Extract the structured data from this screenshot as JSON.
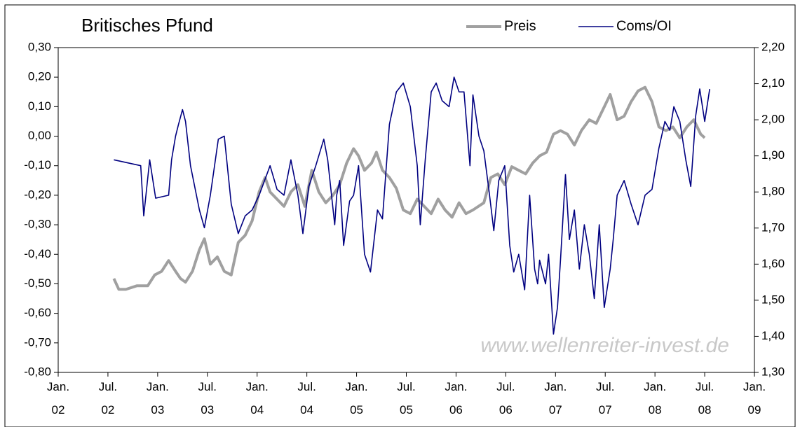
{
  "chart_data": {
    "type": "line",
    "title": "Britisches Pfund",
    "watermark": "www.wellenreiter-invest.de",
    "legend": "top",
    "xlim": [
      2002,
      2009
    ],
    "xticks": [
      {
        "value": 2002,
        "label": "Jan.\n02"
      },
      {
        "value": 2002.5,
        "label": "Jul.\n02"
      },
      {
        "value": 2003,
        "label": "Jan.\n03"
      },
      {
        "value": 2003.5,
        "label": "Jul.\n03"
      },
      {
        "value": 2004,
        "label": "Jan.\n04"
      },
      {
        "value": 2004.5,
        "label": "Jul.\n04"
      },
      {
        "value": 2005,
        "label": "Jan.\n05"
      },
      {
        "value": 2005.5,
        "label": "Jul.\n05"
      },
      {
        "value": 2006,
        "label": "Jan.\n06"
      },
      {
        "value": 2006.5,
        "label": "Jul.\n06"
      },
      {
        "value": 2007,
        "label": "Jan.\n07"
      },
      {
        "value": 2007.5,
        "label": "Jul.\n07"
      },
      {
        "value": 2008,
        "label": "Jan.\n08"
      },
      {
        "value": 2008.5,
        "label": "Jul.\n08"
      },
      {
        "value": 2009,
        "label": "Jan.\n09"
      }
    ],
    "ylim": [
      -0.8,
      0.3
    ],
    "yticks": [
      {
        "value": -0.8,
        "label": "-0,80"
      },
      {
        "value": -0.7,
        "label": "-0,70"
      },
      {
        "value": -0.6,
        "label": "-0,60"
      },
      {
        "value": -0.5,
        "label": "-0,50"
      },
      {
        "value": -0.4,
        "label": "-0,40"
      },
      {
        "value": -0.3,
        "label": "-0,30"
      },
      {
        "value": -0.2,
        "label": "-0,20"
      },
      {
        "value": -0.1,
        "label": "-0,10"
      },
      {
        "value": 0,
        "label": "0,00"
      },
      {
        "value": 0.1,
        "label": "0,10"
      },
      {
        "value": 0.2,
        "label": "0,20"
      },
      {
        "value": 0.3,
        "label": "0,30"
      }
    ],
    "y2lim": [
      1.3,
      2.2
    ],
    "y2ticks": [
      {
        "value": 1.3,
        "label": "1,30"
      },
      {
        "value": 1.4,
        "label": "1,40"
      },
      {
        "value": 1.5,
        "label": "1,50"
      },
      {
        "value": 1.6,
        "label": "1,60"
      },
      {
        "value": 1.7,
        "label": "1,70"
      },
      {
        "value": 1.8,
        "label": "1,80"
      },
      {
        "value": 1.9,
        "label": "1,90"
      },
      {
        "value": 2.0,
        "label": "2,00"
      },
      {
        "value": 2.1,
        "label": "2,10"
      },
      {
        "value": 2.2,
        "label": "2,20"
      }
    ],
    "series": [
      {
        "name": "Preis",
        "color": "#a0a0a0",
        "axis": "y2",
        "x": [
          2002.56,
          2002.61,
          2002.68,
          2002.79,
          2002.9,
          2002.97,
          2003.04,
          2003.11,
          2003.18,
          2003.23,
          2003.28,
          2003.35,
          2003.42,
          2003.47,
          2003.53,
          2003.6,
          2003.67,
          2003.74,
          2003.81,
          2003.88,
          2003.95,
          2004.02,
          2004.08,
          2004.13,
          2004.2,
          2004.27,
          2004.34,
          2004.41,
          2004.48,
          2004.55,
          2004.62,
          2004.69,
          2004.76,
          2004.83,
          2004.9,
          2004.97,
          2005.02,
          2005.08,
          2005.15,
          2005.2,
          2005.26,
          2005.33,
          2005.4,
          2005.47,
          2005.54,
          2005.61,
          2005.68,
          2005.75,
          2005.82,
          2005.89,
          2005.96,
          2006.03,
          2006.1,
          2006.17,
          2006.28,
          2006.35,
          2006.42,
          2006.49,
          2006.56,
          2006.63,
          2006.7,
          2006.77,
          2006.84,
          2006.91,
          2006.98,
          2007.05,
          2007.12,
          2007.19,
          2007.26,
          2007.34,
          2007.41,
          2007.48,
          2007.55,
          2007.62,
          2007.69,
          2007.76,
          2007.83,
          2007.9,
          2007.97,
          2008.04,
          2008.11,
          2008.18,
          2008.25,
          2008.32,
          2008.39,
          2008.46,
          2008.5
        ],
        "values": [
          1.56,
          1.53,
          1.53,
          1.54,
          1.54,
          1.57,
          1.58,
          1.61,
          1.58,
          1.56,
          1.55,
          1.58,
          1.64,
          1.67,
          1.6,
          1.62,
          1.58,
          1.57,
          1.66,
          1.68,
          1.72,
          1.8,
          1.84,
          1.8,
          1.78,
          1.76,
          1.8,
          1.82,
          1.76,
          1.86,
          1.8,
          1.77,
          1.79,
          1.82,
          1.88,
          1.92,
          1.9,
          1.86,
          1.88,
          1.91,
          1.86,
          1.84,
          1.81,
          1.75,
          1.74,
          1.78,
          1.76,
          1.74,
          1.78,
          1.75,
          1.73,
          1.77,
          1.74,
          1.75,
          1.77,
          1.84,
          1.85,
          1.82,
          1.87,
          1.86,
          1.85,
          1.88,
          1.9,
          1.91,
          1.96,
          1.97,
          1.96,
          1.93,
          1.97,
          2.0,
          1.99,
          2.03,
          2.07,
          2.0,
          2.01,
          2.05,
          2.08,
          2.09,
          2.05,
          1.98,
          1.97,
          1.98,
          1.95,
          1.98,
          2.0,
          1.96,
          1.95
        ]
      },
      {
        "name": "Coms/OI",
        "color": "#000080",
        "axis": "y",
        "x": [
          2002.56,
          2002.83,
          2002.86,
          2002.92,
          2002.98,
          2003.11,
          2003.14,
          2003.18,
          2003.21,
          2003.25,
          2003.28,
          2003.33,
          2003.42,
          2003.47,
          2003.53,
          2003.61,
          2003.67,
          2003.74,
          2003.81,
          2003.88,
          2003.95,
          2004.02,
          2004.13,
          2004.2,
          2004.27,
          2004.34,
          2004.41,
          2004.46,
          2004.52,
          2004.59,
          2004.67,
          2004.71,
          2004.78,
          2004.8,
          2004.83,
          2004.87,
          2004.93,
          2004.97,
          2005.02,
          2005.08,
          2005.14,
          2005.21,
          2005.26,
          2005.33,
          2005.4,
          2005.47,
          2005.54,
          2005.61,
          2005.64,
          2005.69,
          2005.75,
          2005.8,
          2005.86,
          2005.93,
          2005.98,
          2006.03,
          2006.08,
          2006.14,
          2006.17,
          2006.23,
          2006.28,
          2006.33,
          2006.38,
          2006.43,
          2006.49,
          2006.54,
          2006.58,
          2006.63,
          2006.69,
          2006.74,
          2006.79,
          2006.82,
          2006.84,
          2006.9,
          2006.93,
          2006.98,
          2007.02,
          2007.05,
          2007.1,
          2007.14,
          2007.19,
          2007.24,
          2007.29,
          2007.34,
          2007.39,
          2007.44,
          2007.49,
          2007.55,
          2007.58,
          2007.62,
          2007.69,
          2007.76,
          2007.83,
          2007.9,
          2007.97,
          2008.04,
          2008.1,
          2008.15,
          2008.19,
          2008.25,
          2008.31,
          2008.36,
          2008.41,
          2008.45,
          2008.5,
          2008.55
        ],
        "values": [
          -0.08,
          -0.1,
          -0.27,
          -0.08,
          -0.21,
          -0.2,
          -0.08,
          0.0,
          0.04,
          0.09,
          0.05,
          -0.1,
          -0.25,
          -0.31,
          -0.2,
          -0.01,
          0.0,
          -0.23,
          -0.33,
          -0.27,
          -0.25,
          -0.2,
          -0.1,
          -0.18,
          -0.2,
          -0.08,
          -0.2,
          -0.33,
          -0.17,
          -0.1,
          -0.01,
          -0.08,
          -0.3,
          -0.2,
          -0.15,
          -0.37,
          -0.22,
          -0.2,
          -0.1,
          -0.4,
          -0.46,
          -0.25,
          -0.28,
          0.04,
          0.15,
          0.18,
          0.1,
          -0.1,
          -0.3,
          -0.08,
          0.15,
          0.18,
          0.12,
          0.1,
          0.2,
          0.15,
          0.15,
          -0.1,
          0.14,
          0.0,
          -0.05,
          -0.18,
          -0.32,
          -0.15,
          -0.1,
          -0.37,
          -0.46,
          -0.4,
          -0.52,
          -0.2,
          -0.45,
          -0.5,
          -0.42,
          -0.5,
          -0.4,
          -0.67,
          -0.58,
          -0.42,
          -0.13,
          -0.35,
          -0.25,
          -0.45,
          -0.3,
          -0.4,
          -0.55,
          -0.3,
          -0.58,
          -0.45,
          -0.35,
          -0.2,
          -0.15,
          -0.23,
          -0.3,
          -0.2,
          -0.18,
          -0.04,
          0.05,
          0.02,
          0.1,
          0.05,
          -0.08,
          -0.17,
          0.07,
          0.16,
          0.05,
          0.16
        ]
      }
    ]
  }
}
